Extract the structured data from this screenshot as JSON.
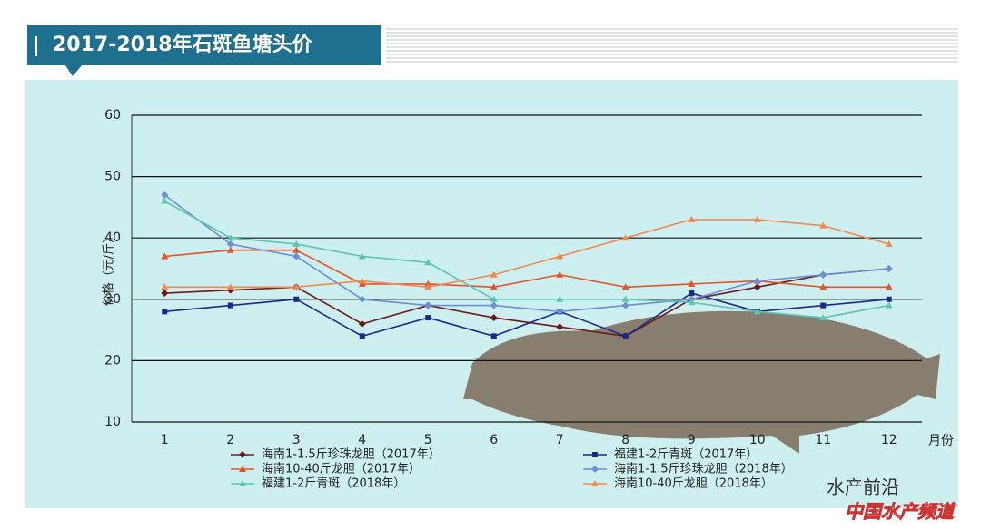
{
  "chart_data": {
    "type": "line",
    "title": "2017-2018年石斑鱼塘头价",
    "y_label": "价格（元/斤）",
    "x_label": "月份",
    "categories": [
      "1",
      "2",
      "3",
      "4",
      "5",
      "6",
      "7",
      "8",
      "9",
      "10",
      "11",
      "12"
    ],
    "ylim": [
      10,
      60
    ],
    "yticks": [
      10,
      20,
      30,
      40,
      50,
      60
    ],
    "grid": true,
    "series": [
      {
        "name": "海南1-1.5斤珍珠龙胆（2017年）",
        "color": "#6b1a1a",
        "marker": "diamond",
        "values": [
          31,
          31.5,
          32,
          26,
          29,
          27,
          25.5,
          24,
          30,
          32,
          34,
          35
        ]
      },
      {
        "name": "福建1-2斤青斑（2017年）",
        "color": "#1a2a8a",
        "marker": "square",
        "values": [
          28,
          29,
          30,
          24,
          27,
          24,
          28,
          24,
          31,
          28,
          29,
          30
        ]
      },
      {
        "name": "海南10-40斤龙胆（2017年）",
        "color": "#e0552a",
        "marker": "triangle",
        "values": [
          37,
          38,
          38,
          32.5,
          32.5,
          32,
          34,
          32,
          32.5,
          33,
          32,
          32
        ]
      },
      {
        "name": "海南1-1.5斤珍珠龙胆（2018年）",
        "color": "#6b8fd6",
        "marker": "diamond",
        "values": [
          47,
          39,
          37,
          30,
          29,
          29,
          28,
          29,
          30,
          33,
          34,
          35
        ]
      },
      {
        "name": "福建1-2斤青斑（2018年）",
        "color": "#5cc4b0",
        "marker": "triangle",
        "values": [
          46,
          40,
          39,
          37,
          36,
          30,
          30,
          30,
          29.5,
          28,
          27,
          29
        ]
      },
      {
        "name": "海南10-40斤龙胆（2018年）",
        "color": "#f08a50",
        "marker": "triangle",
        "values": [
          32,
          32,
          32,
          33,
          32,
          34,
          37,
          40,
          43,
          43,
          42,
          39
        ]
      }
    ]
  },
  "watermark": {
    "brand": "水产前沿",
    "channel": "中国水产频道"
  }
}
